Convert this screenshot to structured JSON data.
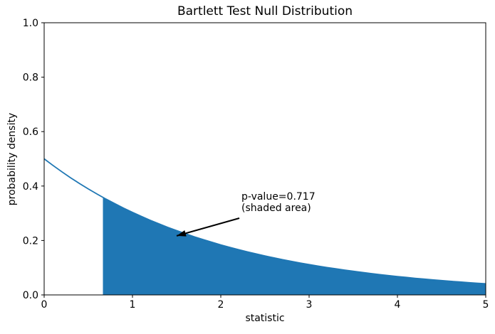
{
  "figure": {
    "title": "Bartlett Test Null Distribution",
    "xlabel": "statistic",
    "ylabel": "probability density"
  },
  "annotation": {
    "line1": "p-value=0.717",
    "line2": "(shaded area)"
  },
  "colors": {
    "curve": "#1f77b4",
    "fill": "#1f77b4",
    "axis": "#000000",
    "text": "#000000",
    "arrow": "#000000",
    "background": "#ffffff"
  },
  "chart_data": {
    "type": "area",
    "title": "Bartlett Test Null Distribution",
    "xlabel": "statistic",
    "ylabel": "probability density",
    "xlim": [
      0,
      5
    ],
    "ylim": [
      0,
      1
    ],
    "x_ticks": [
      0,
      1,
      2,
      3,
      4,
      5
    ],
    "x_tick_labels": [
      "0",
      "1",
      "2",
      "3",
      "4",
      "5"
    ],
    "y_ticks": [
      0.0,
      0.2,
      0.4,
      0.6,
      0.8,
      1.0
    ],
    "y_tick_labels": [
      "0.0",
      "0.2",
      "0.4",
      "0.6",
      "0.8",
      "1.0"
    ],
    "grid": false,
    "legend": false,
    "curve": {
      "name": "null distribution pdf",
      "x": [
        0,
        0.1,
        0.2,
        0.3,
        0.4,
        0.5,
        0.6,
        0.7,
        0.8,
        0.9,
        1,
        1.1,
        1.2,
        1.3,
        1.4,
        1.5,
        1.6,
        1.7,
        1.8,
        1.9,
        2,
        2.1,
        2.2,
        2.3,
        2.4,
        2.5,
        2.6,
        2.7,
        2.8,
        2.9,
        3,
        3.1,
        3.2,
        3.3,
        3.4,
        3.5,
        3.6,
        3.7,
        3.8,
        3.9,
        4,
        4.1,
        4.2,
        4.3,
        4.4,
        4.5,
        4.6,
        4.7,
        4.8,
        4.9,
        5
      ],
      "y": [
        0.5,
        0.4756,
        0.4524,
        0.4304,
        0.4094,
        0.3894,
        0.3704,
        0.3523,
        0.3352,
        0.3188,
        0.3033,
        0.2885,
        0.2744,
        0.261,
        0.2483,
        0.2362,
        0.2247,
        0.2137,
        0.2033,
        0.1934,
        0.1839,
        0.175,
        0.1664,
        0.1583,
        0.1506,
        0.1433,
        0.1363,
        0.1296,
        0.1233,
        0.1173,
        0.1116,
        0.1061,
        0.1009,
        0.096,
        0.0913,
        0.0869,
        0.0827,
        0.0786,
        0.0748,
        0.0711,
        0.0677,
        0.0644,
        0.0612,
        0.0582,
        0.0554,
        0.0527,
        0.0501,
        0.0477,
        0.0454,
        0.0431,
        0.041
      ]
    },
    "shaded_region": {
      "from": 0.665,
      "to": 5,
      "p_value": 0.717
    },
    "annotation": {
      "text": [
        "p-value=0.717",
        "(shaded area)"
      ],
      "arrow_tip_xy": [
        1.5,
        0.217
      ],
      "arrow_tail_xy": [
        2.21,
        0.282
      ]
    }
  }
}
